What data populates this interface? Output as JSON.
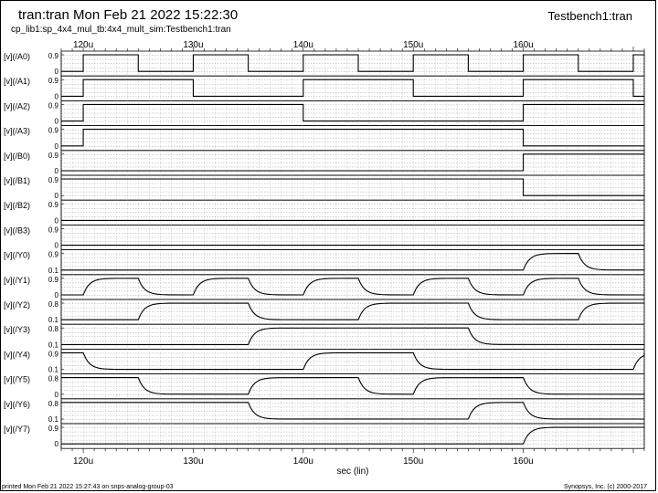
{
  "header": {
    "title": "tran:tran Mon Feb 21 2022 15:22:30",
    "testbench": "Testbench1:tran",
    "design_path": "cp_lib1:sp_4x4_mul_tb:4x4_mult_sim:Testbench1:tran"
  },
  "footer": {
    "printed": "printed Mon Feb 21 2022 15:27:43 on snps-analog-group-03",
    "copyright": "Synopsys, Inc. (c) 2000-2017"
  },
  "chart_data": {
    "type": "line",
    "xlabel": "sec (lin)",
    "x_tick_labels": [
      "120u",
      "130u",
      "140u",
      "150u",
      "160u"
    ],
    "x_ticks": [
      120,
      130,
      140,
      150,
      160
    ],
    "xlim": [
      118,
      171
    ],
    "x_unit": "us",
    "series": [
      {
        "name": "[v](/A0)",
        "y_ticks": [
          "0.9",
          "0"
        ],
        "transitions": [
          [
            120,
            1
          ],
          [
            125,
            0
          ],
          [
            130,
            1
          ],
          [
            135,
            0
          ],
          [
            140,
            1
          ],
          [
            145,
            0
          ],
          [
            150,
            1
          ],
          [
            155,
            0
          ],
          [
            160,
            1
          ],
          [
            165,
            0
          ],
          [
            170,
            1
          ]
        ],
        "init": 0
      },
      {
        "name": "[v](/A1)",
        "y_ticks": [
          "0.9",
          "0"
        ],
        "transitions": [
          [
            120,
            1
          ],
          [
            130,
            0
          ],
          [
            140,
            1
          ],
          [
            150,
            0
          ],
          [
            160,
            1
          ],
          [
            170,
            0
          ]
        ],
        "init": 0
      },
      {
        "name": "[v](/A2)",
        "y_ticks": [
          "0.9",
          "0"
        ],
        "transitions": [
          [
            120,
            1
          ],
          [
            140,
            0
          ],
          [
            160,
            1
          ]
        ],
        "init": 0
      },
      {
        "name": "[v](/A3)",
        "y_ticks": [
          "0.9",
          "0"
        ],
        "transitions": [
          [
            120,
            1
          ],
          [
            160,
            0
          ]
        ],
        "init": 0
      },
      {
        "name": "[v](/B0)",
        "y_ticks": [
          "0.9",
          "0"
        ],
        "transitions": [
          [
            160,
            1
          ]
        ],
        "init": 0
      },
      {
        "name": "[v](/B1)",
        "y_ticks": [
          "0.9",
          "0"
        ],
        "transitions": [
          [
            160,
            0
          ]
        ],
        "init": 1
      },
      {
        "name": "[v](/B2)",
        "y_ticks": [
          "0.9",
          "0"
        ],
        "transitions": [],
        "init": 0
      },
      {
        "name": "[v](/B3)",
        "y_ticks": [
          "0.9",
          "0"
        ],
        "transitions": [],
        "init": 0
      },
      {
        "name": "[v](/Y0)",
        "y_ticks": [
          "0.9",
          "0.1"
        ],
        "transitions": [
          [
            160,
            1
          ],
          [
            165,
            0
          ]
        ],
        "init": 0
      },
      {
        "name": "[v](/Y1)",
        "y_ticks": [
          "0.9",
          "0"
        ],
        "transitions": [
          [
            120,
            1
          ],
          [
            125,
            0
          ],
          [
            130,
            1
          ],
          [
            135,
            0
          ],
          [
            140,
            1
          ],
          [
            145,
            0
          ],
          [
            150,
            1
          ],
          [
            155,
            0
          ],
          [
            160,
            1
          ],
          [
            165,
            0
          ]
        ],
        "init": 0
      },
      {
        "name": "[v](/Y2)",
        "y_ticks": [
          "0.8",
          "0.1"
        ],
        "transitions": [
          [
            125,
            1
          ],
          [
            135,
            0
          ],
          [
            145,
            1
          ],
          [
            155,
            0
          ],
          [
            165,
            1
          ]
        ],
        "init": 0
      },
      {
        "name": "[v](/Y3)",
        "y_ticks": [
          "0.8",
          "0.1"
        ],
        "transitions": [
          [
            135,
            1
          ],
          [
            155,
            0
          ]
        ],
        "init": 0
      },
      {
        "name": "[v](/Y4)",
        "y_ticks": [
          "0.9",
          "0.1"
        ],
        "transitions": [
          [
            120,
            0
          ],
          [
            140,
            1
          ],
          [
            150,
            0
          ],
          [
            170,
            1
          ]
        ],
        "init": 1
      },
      {
        "name": "[v](/Y5)",
        "y_ticks": [
          "0.8",
          "0"
        ],
        "transitions": [
          [
            125,
            0
          ],
          [
            135,
            1
          ],
          [
            145,
            0
          ],
          [
            150,
            1
          ],
          [
            160,
            0
          ]
        ],
        "init": 1
      },
      {
        "name": "[v](/Y6)",
        "y_ticks": [
          "0.8",
          "0.1"
        ],
        "transitions": [
          [
            135,
            0
          ],
          [
            155,
            1
          ],
          [
            160,
            0
          ]
        ],
        "init": 1
      },
      {
        "name": "[v](/Y7)",
        "y_ticks": [
          "0.9",
          "0"
        ],
        "transitions": [
          [
            160,
            1
          ]
        ],
        "init": 0
      }
    ],
    "grid": true,
    "line_color": "#000000"
  }
}
